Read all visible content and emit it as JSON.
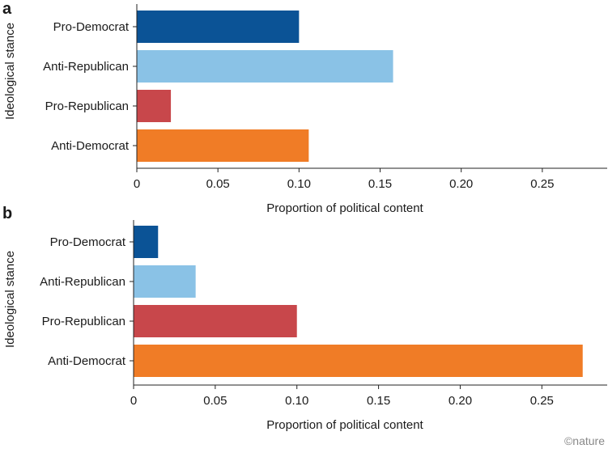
{
  "chart_data": [
    {
      "type": "bar",
      "orientation": "horizontal",
      "panel": "a",
      "categories": [
        "Pro-Democrat",
        "Anti-Republican",
        "Pro-Republican",
        "Anti-Democrat"
      ],
      "values": [
        0.1,
        0.158,
        0.021,
        0.106
      ],
      "colors": [
        "#0b5396",
        "#8ac2e6",
        "#c8474b",
        "#f07c26"
      ],
      "xlabel": "Proportion of political content",
      "ylabel": "Ideological stance",
      "xlim": [
        0,
        0.29
      ],
      "xticks": [
        0,
        0.05,
        0.1,
        0.15,
        0.2,
        0.25
      ],
      "xtick_labels": [
        "0",
        "0.05",
        "0.10",
        "0.15",
        "0.20",
        "0.25"
      ],
      "grid": false
    },
    {
      "type": "bar",
      "orientation": "horizontal",
      "panel": "b",
      "categories": [
        "Pro-Democrat",
        "Anti-Republican",
        "Pro-Republican",
        "Anti-Democrat"
      ],
      "values": [
        0.015,
        0.038,
        0.1,
        0.275
      ],
      "colors": [
        "#0b5396",
        "#8ac2e6",
        "#c8474b",
        "#f07c26"
      ],
      "xlabel": "Proportion of political content",
      "ylabel": "Ideological stance",
      "xlim": [
        0,
        0.29
      ],
      "xticks": [
        0,
        0.05,
        0.1,
        0.15,
        0.2,
        0.25
      ],
      "xtick_labels": [
        "0",
        "0.05",
        "0.10",
        "0.15",
        "0.20",
        "0.25"
      ],
      "grid": false
    }
  ],
  "credit": "©nature"
}
